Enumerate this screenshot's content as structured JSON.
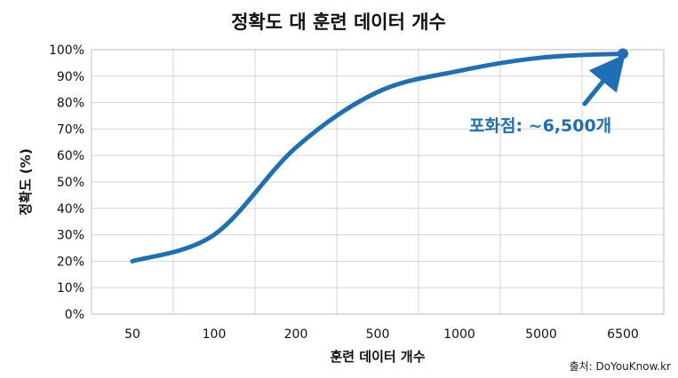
{
  "chart_data": {
    "type": "line",
    "title": "정확도 대 훈련 데이터 개수",
    "xlabel": "훈련 데이터 개수",
    "ylabel": "정확도 (%)",
    "categories": [
      "50",
      "100",
      "200",
      "500",
      "1000",
      "5000",
      "6500"
    ],
    "x_scale": "categorical",
    "ylim": [
      0,
      100
    ],
    "yticks": [
      "0%",
      "10%",
      "20%",
      "30%",
      "40%",
      "50%",
      "60%",
      "70%",
      "80%",
      "90%",
      "100%"
    ],
    "grid": true,
    "series": [
      {
        "color": "#1f6fb5",
        "points": [
          {
            "x": "50",
            "y": 20
          },
          {
            "x": "100",
            "y": 30
          },
          {
            "x": "200",
            "y": 63
          },
          {
            "x": "500",
            "y": 84
          },
          {
            "x": "1000",
            "y": 92
          },
          {
            "x": "5000",
            "y": 97
          },
          {
            "x": "6500",
            "y": 98.5
          }
        ]
      }
    ],
    "annotation": {
      "text": "포화점: ~6,500개",
      "points_to": "6500"
    },
    "source": "출처: DoYouKnow.kr"
  }
}
